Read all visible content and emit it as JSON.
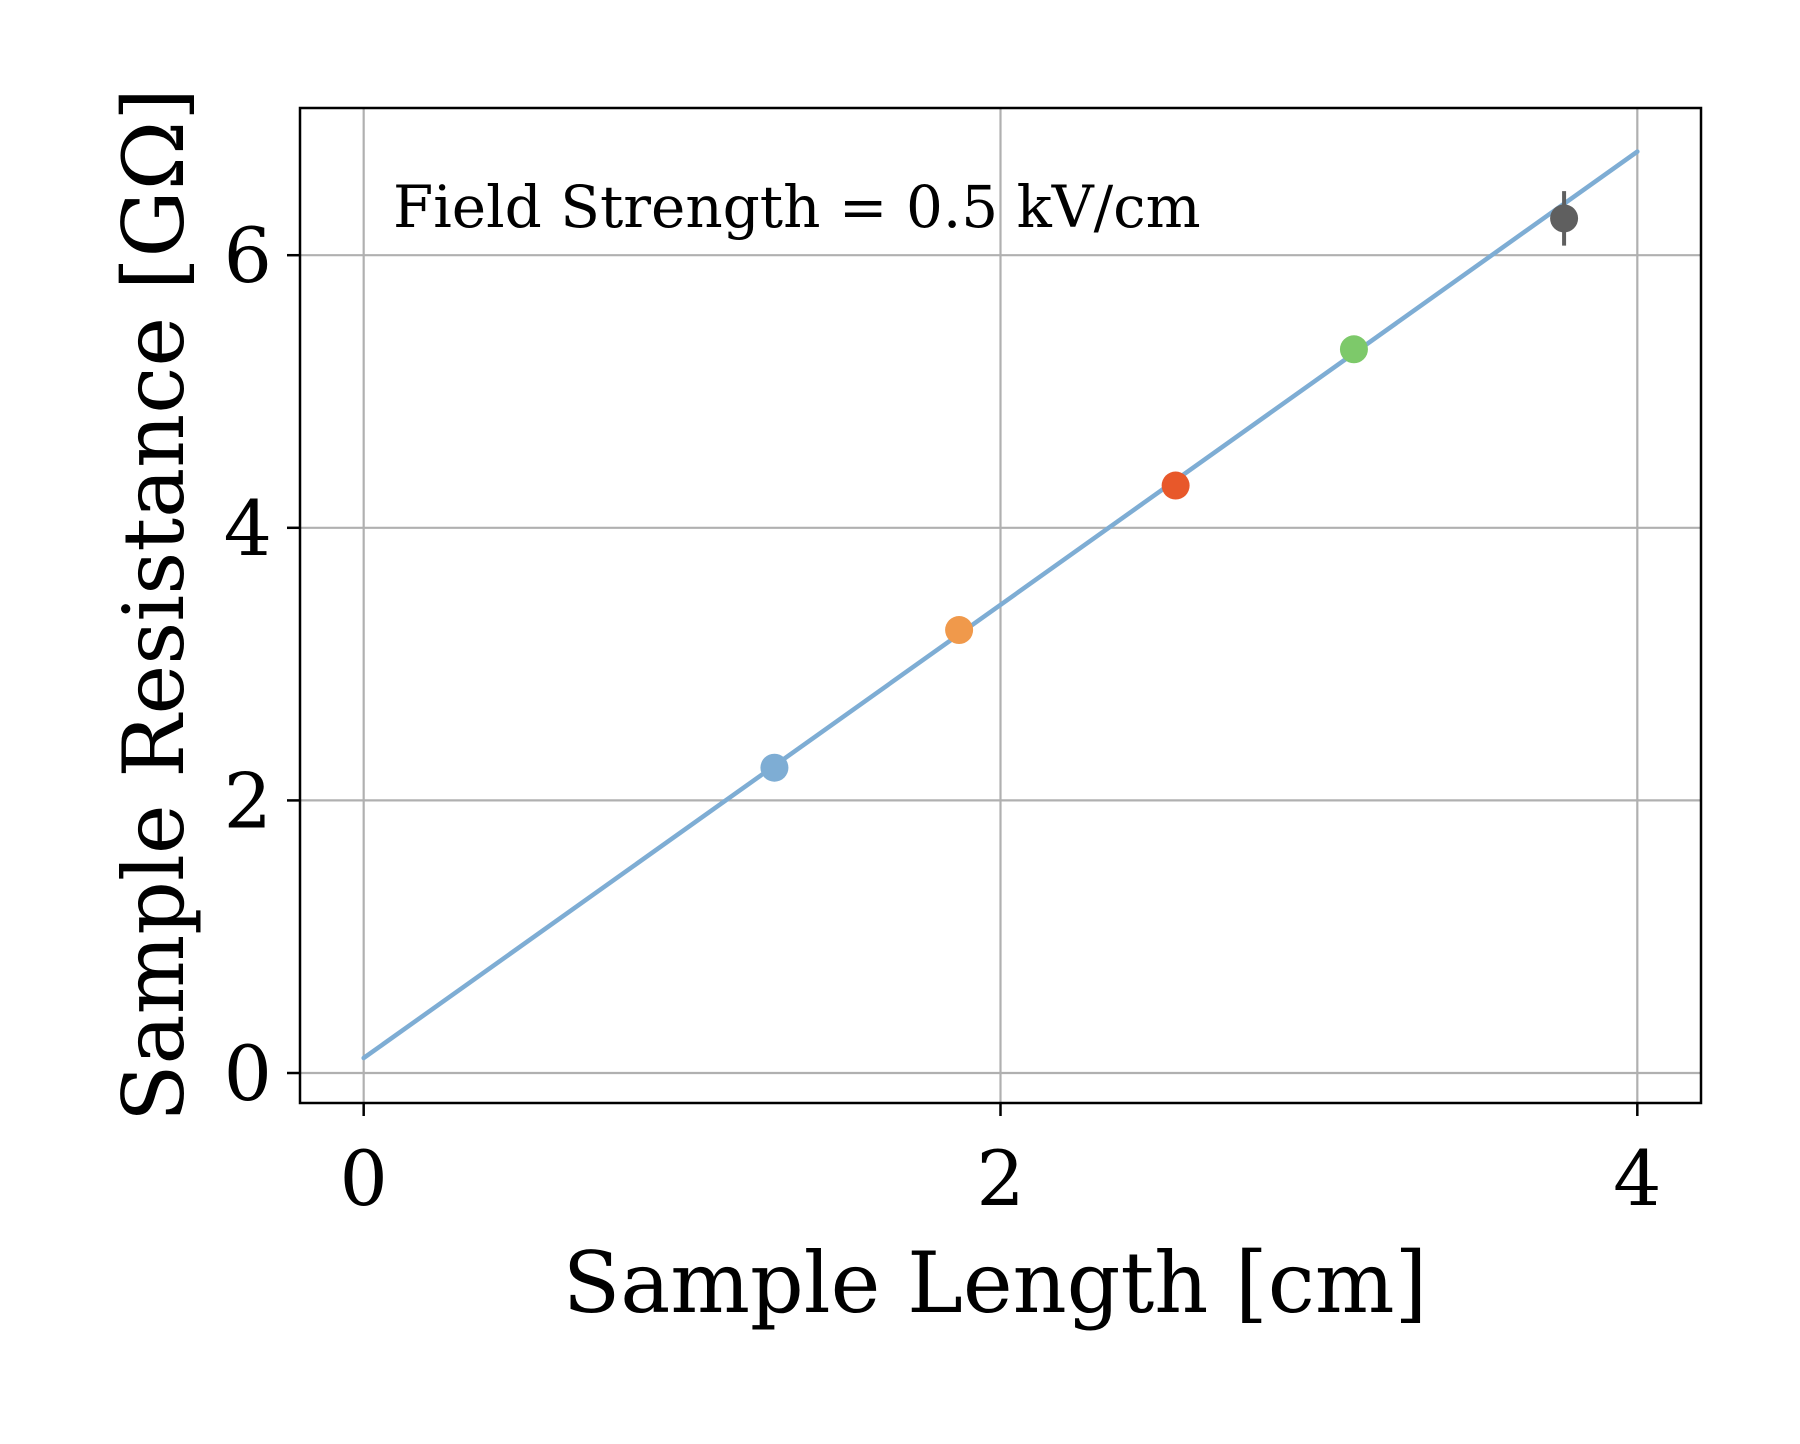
{
  "chart_data": {
    "type": "scatter",
    "xlabel": "Sample Length [cm]",
    "ylabel": "Sample Resistance [GΩ]",
    "xlim": [
      -0.2,
      4.2
    ],
    "ylim": [
      -0.22,
      7.08
    ],
    "xticks": [
      0,
      2,
      4
    ],
    "yticks": [
      0,
      2,
      4,
      6
    ],
    "xtick_labels": [
      "0",
      "2",
      "4"
    ],
    "ytick_labels": [
      "0",
      "2",
      "4",
      "6"
    ],
    "grid": true,
    "annotation": "Field Strength = 0.5 kV/cm",
    "points": [
      {
        "x": 1.29,
        "y": 2.24,
        "yerr": 0.05,
        "color": "#7eadd4"
      },
      {
        "x": 1.87,
        "y": 3.25,
        "yerr": 0.05,
        "color": "#f0994b"
      },
      {
        "x": 2.55,
        "y": 4.31,
        "yerr": 0.06,
        "color": "#e8582a"
      },
      {
        "x": 3.11,
        "y": 5.31,
        "yerr": 0.08,
        "color": "#7dc96a"
      },
      {
        "x": 3.77,
        "y": 6.27,
        "yerr": 0.2,
        "color": "#5f5f5f"
      }
    ],
    "fit_line": {
      "x": [
        0,
        4
      ],
      "y": [
        0.11,
        6.76
      ],
      "color": "#7eadd4"
    }
  }
}
